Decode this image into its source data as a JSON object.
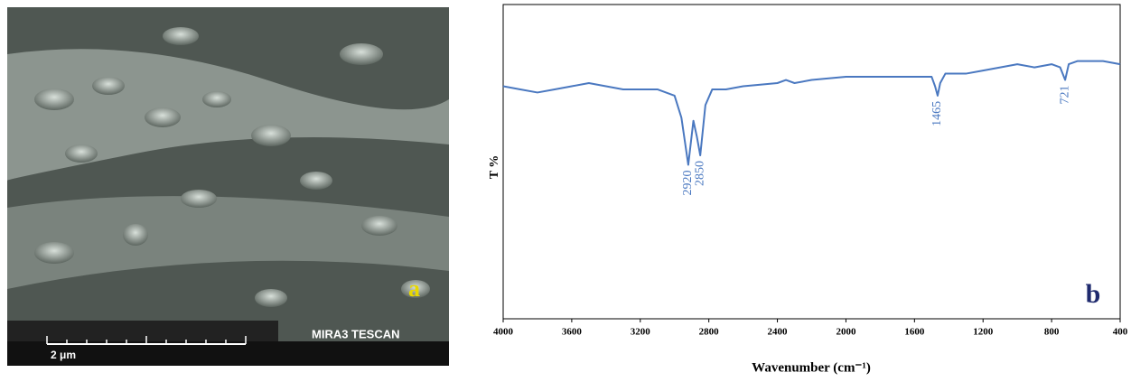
{
  "panel_a": {
    "label": "a",
    "scale_bar": "2 μm",
    "instrument": "MIRA3 TESCAN"
  },
  "chart_data": {
    "type": "line",
    "panel_label": "b",
    "y_label": "T %",
    "x_label": "Wavenumber (cm⁻¹)",
    "x": [
      4000,
      3900,
      3800,
      3700,
      3600,
      3500,
      3400,
      3300,
      3200,
      3100,
      3000,
      2960,
      2920,
      2890,
      2870,
      2850,
      2820,
      2780,
      2700,
      2600,
      2400,
      2350,
      2300,
      2200,
      2000,
      1800,
      1700,
      1600,
      1500,
      1480,
      1465,
      1450,
      1420,
      1300,
      1200,
      1100,
      1000,
      900,
      800,
      750,
      721,
      700,
      650,
      600,
      500,
      400
    ],
    "series": [
      {
        "color": "#4a78c0",
        "values": [
          74,
          73,
          72,
          73,
          74,
          75,
          74,
          73,
          73,
          73,
          71,
          64,
          49,
          63,
          58,
          52,
          68,
          73,
          73,
          74,
          75,
          76,
          75,
          76,
          77,
          77,
          77,
          77,
          77,
          74,
          71,
          75,
          78,
          78,
          79,
          80,
          81,
          80,
          81,
          80,
          76,
          81,
          82,
          82,
          82,
          81
        ]
      }
    ],
    "xlim": [
      4000,
      400
    ],
    "ylim": [
      0,
      100
    ],
    "xticks": [
      4000,
      3600,
      3200,
      2800,
      2400,
      2000,
      1600,
      1200,
      800,
      400
    ],
    "annotations": [
      {
        "text": "2920",
        "x": 2920,
        "y": 49
      },
      {
        "text": "2850",
        "x": 2850,
        "y": 52
      },
      {
        "text": "1465",
        "x": 1465,
        "y": 71
      },
      {
        "text": "721",
        "x": 721,
        "y": 76
      }
    ]
  }
}
